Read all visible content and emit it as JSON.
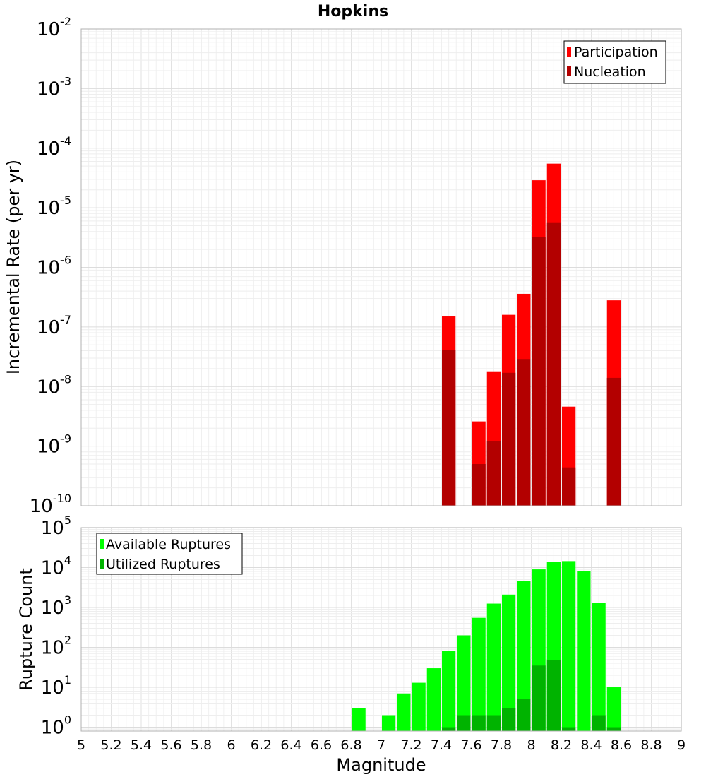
{
  "chart_data": [
    {
      "type": "bar",
      "title": "Hopkins",
      "ylabel": "Incremental Rate (per yr)",
      "xlabel": "",
      "yscale": "log",
      "ylim": [
        1e-10,
        0.01
      ],
      "xlim": [
        5,
        9
      ],
      "y_ticks": [
        {
          "base": "10",
          "exp": "-10",
          "value": 1e-10
        },
        {
          "base": "10",
          "exp": "-9",
          "value": 1e-09
        },
        {
          "base": "10",
          "exp": "-8",
          "value": 1e-08
        },
        {
          "base": "10",
          "exp": "-7",
          "value": 1e-07
        },
        {
          "base": "10",
          "exp": "-6",
          "value": 1e-06
        },
        {
          "base": "10",
          "exp": "-5",
          "value": 1e-05
        },
        {
          "base": "10",
          "exp": "-4",
          "value": 0.0001
        },
        {
          "base": "10",
          "exp": "-3",
          "value": 0.001
        },
        {
          "base": "10",
          "exp": "-2",
          "value": 0.01
        }
      ],
      "legend_position": "top-right",
      "grid": true,
      "series": [
        {
          "name": "Participation",
          "color": "#ff0000",
          "points": [
            {
              "x": 7.45,
              "y": 1.5e-07
            },
            {
              "x": 7.65,
              "y": 2.6e-09
            },
            {
              "x": 7.75,
              "y": 1.8e-08
            },
            {
              "x": 7.85,
              "y": 1.6e-07
            },
            {
              "x": 7.95,
              "y": 3.6e-07
            },
            {
              "x": 8.05,
              "y": 2.9e-05
            },
            {
              "x": 8.15,
              "y": 5.5e-05
            },
            {
              "x": 8.25,
              "y": 4.6e-09
            },
            {
              "x": 8.55,
              "y": 2.8e-07
            }
          ]
        },
        {
          "name": "Nucleation",
          "color": "#b30000",
          "points": [
            {
              "x": 7.45,
              "y": 4.1e-08
            },
            {
              "x": 7.65,
              "y": 5e-10
            },
            {
              "x": 7.75,
              "y": 1.2e-09
            },
            {
              "x": 7.85,
              "y": 1.7e-08
            },
            {
              "x": 7.95,
              "y": 2.9e-08
            },
            {
              "x": 8.05,
              "y": 3.2e-06
            },
            {
              "x": 8.15,
              "y": 5.7e-06
            },
            {
              "x": 8.25,
              "y": 4.4e-10
            },
            {
              "x": 8.55,
              "y": 1.4e-08
            }
          ]
        }
      ]
    },
    {
      "type": "bar",
      "title": "",
      "xlabel": "Magnitude",
      "ylabel": "Rupture Count",
      "yscale": "log",
      "ylim": [
        0.8,
        100000.0
      ],
      "xlim": [
        5,
        9
      ],
      "x_ticks": [
        "5",
        "5.2",
        "5.4",
        "5.6",
        "5.8",
        "6",
        "6.2",
        "6.4",
        "6.6",
        "6.8",
        "7",
        "7.2",
        "7.4",
        "7.6",
        "7.8",
        "8",
        "8.2",
        "8.4",
        "8.6",
        "8.8",
        "9"
      ],
      "y_ticks": [
        {
          "base": "10",
          "exp": "0",
          "value": 1
        },
        {
          "base": "10",
          "exp": "1",
          "value": 10
        },
        {
          "base": "10",
          "exp": "2",
          "value": 100
        },
        {
          "base": "10",
          "exp": "3",
          "value": 1000
        },
        {
          "base": "10",
          "exp": "4",
          "value": 10000
        },
        {
          "base": "10",
          "exp": "5",
          "value": 100000
        }
      ],
      "legend_position": "top-left",
      "grid": true,
      "series": [
        {
          "name": "Available Ruptures",
          "color": "#00ff00",
          "points": [
            {
              "x": 6.85,
              "y": 3
            },
            {
              "x": 7.05,
              "y": 2
            },
            {
              "x": 7.15,
              "y": 7
            },
            {
              "x": 7.25,
              "y": 13
            },
            {
              "x": 7.35,
              "y": 30
            },
            {
              "x": 7.45,
              "y": 80
            },
            {
              "x": 7.55,
              "y": 200
            },
            {
              "x": 7.65,
              "y": 550
            },
            {
              "x": 7.75,
              "y": 1250
            },
            {
              "x": 7.85,
              "y": 2100
            },
            {
              "x": 7.95,
              "y": 4700
            },
            {
              "x": 8.05,
              "y": 9000
            },
            {
              "x": 8.15,
              "y": 14000
            },
            {
              "x": 8.25,
              "y": 14500
            },
            {
              "x": 8.35,
              "y": 8000
            },
            {
              "x": 8.45,
              "y": 1300
            },
            {
              "x": 8.55,
              "y": 10
            }
          ]
        },
        {
          "name": "Utilized Ruptures",
          "color": "#00b300",
          "points": [
            {
              "x": 7.45,
              "y": 1
            },
            {
              "x": 7.55,
              "y": 2
            },
            {
              "x": 7.65,
              "y": 2
            },
            {
              "x": 7.75,
              "y": 2
            },
            {
              "x": 7.85,
              "y": 3
            },
            {
              "x": 7.95,
              "y": 5
            },
            {
              "x": 8.05,
              "y": 35
            },
            {
              "x": 8.15,
              "y": 48
            },
            {
              "x": 8.25,
              "y": 1
            },
            {
              "x": 8.45,
              "y": 2
            },
            {
              "x": 8.55,
              "y": 1
            }
          ]
        }
      ]
    }
  ]
}
